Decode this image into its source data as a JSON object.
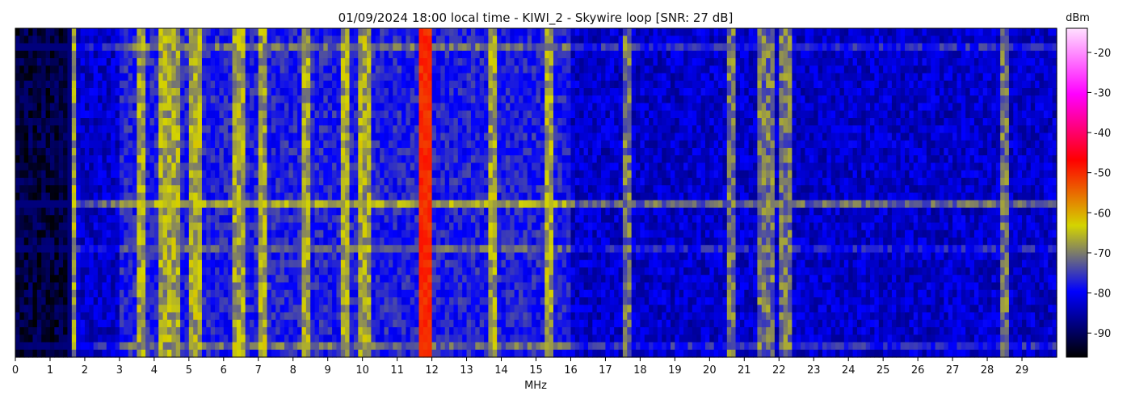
{
  "chart_data": {
    "type": "heatmap",
    "title": "01/09/2024 18:00 local time - KIWI_2 - Skywire loop [SNR: 27 dB]",
    "xlabel": "MHz",
    "ylabel": "",
    "xlim": [
      0,
      30
    ],
    "x_ticks": [
      "0",
      "1",
      "2",
      "3",
      "4",
      "5",
      "6",
      "7",
      "8",
      "9",
      "10",
      "11",
      "12",
      "13",
      "14",
      "15",
      "16",
      "17",
      "18",
      "19",
      "20",
      "21",
      "22",
      "23",
      "24",
      "25",
      "26",
      "27",
      "28",
      "29"
    ],
    "colorbar": {
      "label": "dBm",
      "range": [
        -96,
        -14
      ],
      "ticks": [
        "-20",
        "-30",
        "-40",
        "-50",
        "-60",
        "-70",
        "-80",
        "-90"
      ],
      "colormap": [
        "#000000",
        "#0000ff",
        "#d4d400",
        "#ff0000",
        "#ff00ff",
        "#ffe0ff"
      ]
    },
    "approx_levels_dbm": {
      "noise_floor": -92,
      "mid_background": -83,
      "bands_3_to_16_mhz": -72,
      "strongest_signals": -52
    },
    "notable_frequencies_mhz": [
      1.6,
      3.6,
      4.3,
      4.65,
      5.2,
      6.45,
      7.1,
      8.4,
      9.5,
      10.05,
      11.8,
      13.75,
      15.35,
      17.65,
      20.6,
      21.5,
      21.75,
      22.2,
      28.5
    ],
    "notable_signal_rows": [
      "near top",
      "about 60% down (strongest horizontal line)",
      "near bottom"
    ]
  }
}
